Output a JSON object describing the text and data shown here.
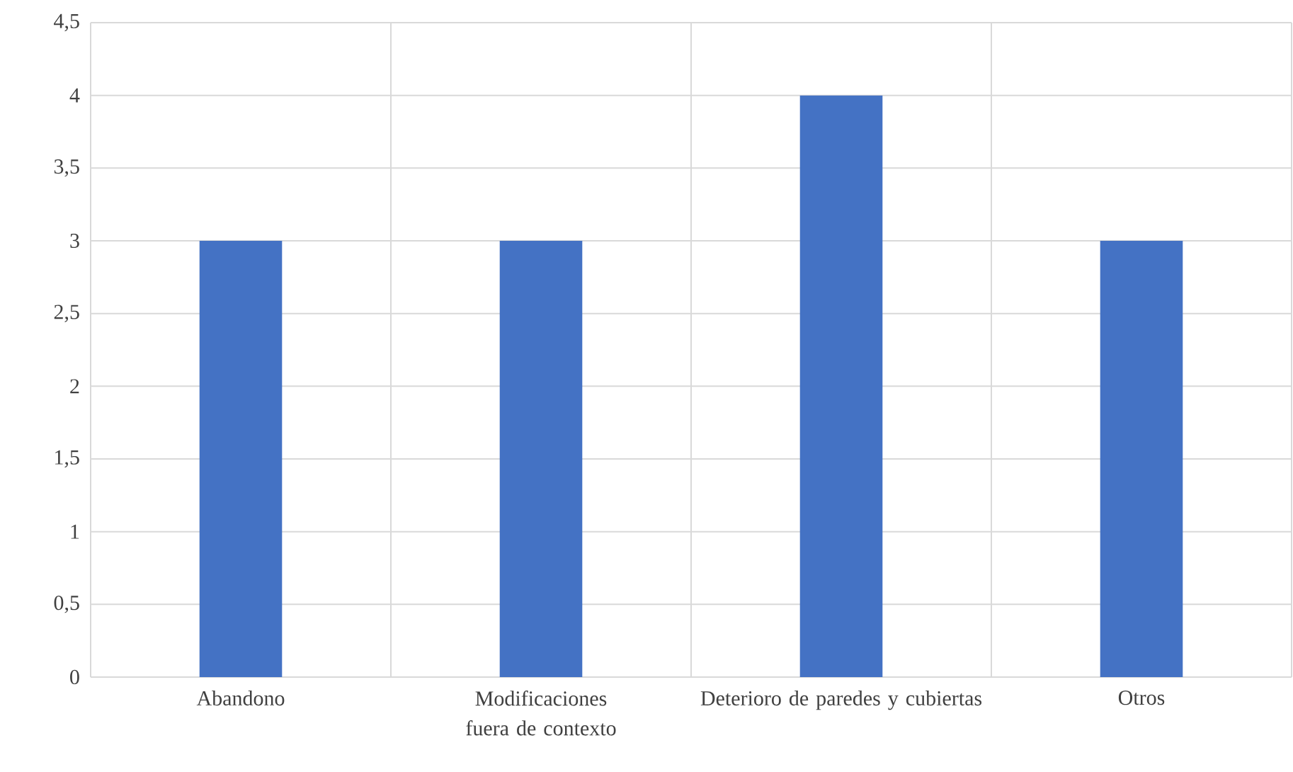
{
  "chart_data": {
    "type": "bar",
    "categories": [
      "Abandono",
      "Modificaciones fuera de contexto",
      "Deterioro de paredes y cubiertas",
      "Otros"
    ],
    "values": [
      3,
      3,
      4,
      3
    ],
    "color": "#4472c4",
    "ylim": [
      0,
      4.5
    ],
    "yticks": [
      0,
      {
        "value": 0.5,
        "label": "0,5"
      },
      1,
      {
        "value": 1.5,
        "label": "1,5"
      },
      2,
      {
        "value": 2.5,
        "label": "2,5"
      },
      3,
      {
        "value": 3.5,
        "label": "3,5"
      },
      4,
      {
        "value": 4.5,
        "label": "4,5"
      }
    ],
    "grid": true
  }
}
